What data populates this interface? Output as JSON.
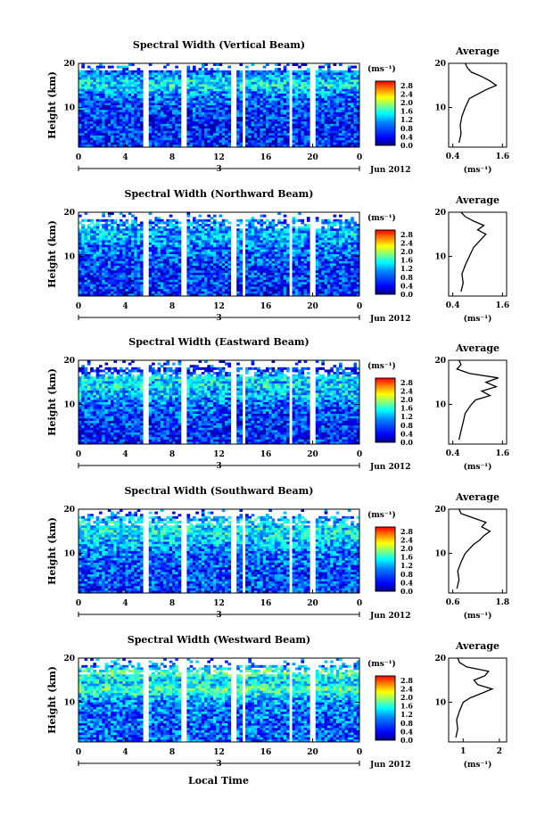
{
  "figure": {
    "x_axis_label": "Local Time",
    "date_label": "Jun 2012",
    "day_marker": "3",
    "colorbar_unit": "(ms⁻¹)",
    "y_axis_label": "Height (km)",
    "avg_title": "Average",
    "avg_unit": "(ms⁻¹)"
  },
  "chart_data": [
    {
      "type": "heatmap",
      "title": "Spectral Width (Vertical Beam)",
      "ylabel": "Height (km)",
      "xlabel": "Local Time",
      "x_ticks": [
        "0",
        "4",
        "8",
        "12",
        "16",
        "20",
        "0"
      ],
      "xlim": [
        0,
        24
      ],
      "y_ticks": [
        "20",
        "10"
      ],
      "ylim": [
        1,
        20
      ],
      "colorbar": {
        "unit": "(ms⁻¹)",
        "ticks": [
          "2.8",
          "2.4",
          "2.0",
          "1.6",
          "1.2",
          "0.8",
          "0.4",
          "0.0"
        ],
        "range": [
          0,
          3.0
        ]
      },
      "data_gaps_hours": [
        [
          5.6,
          6.1
        ],
        [
          8.8,
          9.3
        ],
        [
          13.0,
          13.6
        ],
        [
          14.0,
          14.3
        ],
        [
          17.9,
          18.2
        ],
        [
          19.7,
          20.2
        ]
      ],
      "average_profile": {
        "title": "Average",
        "xlabel": "(ms⁻¹)",
        "x_ticks": [
          "0.4",
          "1.6"
        ],
        "xlim": [
          0.3,
          1.7
        ],
        "ylim": [
          1,
          20
        ],
        "height_km": [
          2,
          4,
          6,
          8,
          10,
          12,
          13,
          14,
          15,
          16,
          17,
          18,
          19,
          20
        ],
        "width": [
          0.55,
          0.6,
          0.58,
          0.62,
          0.7,
          0.8,
          1.0,
          1.2,
          1.45,
          1.3,
          1.1,
          0.85,
          0.75,
          0.7
        ]
      }
    },
    {
      "type": "heatmap",
      "title": "Spectral Width (Northward Beam)",
      "ylabel": "Height (km)",
      "xlabel": "Local Time",
      "x_ticks": [
        "0",
        "4",
        "8",
        "12",
        "16",
        "20",
        "0"
      ],
      "xlim": [
        0,
        24
      ],
      "y_ticks": [
        "20",
        "10"
      ],
      "ylim": [
        1,
        20
      ],
      "colorbar": {
        "unit": "(ms⁻¹)",
        "ticks": [
          "2.8",
          "2.4",
          "2.0",
          "1.6",
          "1.2",
          "0.8",
          "0.4",
          "0.0"
        ],
        "range": [
          0,
          3.0
        ]
      },
      "data_gaps_hours": [
        [
          5.6,
          6.1
        ],
        [
          8.8,
          9.3
        ],
        [
          13.0,
          13.6
        ],
        [
          14.0,
          14.3
        ],
        [
          17.9,
          18.2
        ],
        [
          19.7,
          20.2
        ]
      ],
      "average_profile": {
        "title": "Average",
        "xlabel": "(ms⁻¹)",
        "x_ticks": [
          "0.4",
          "1.6"
        ],
        "xlim": [
          0.3,
          1.7
        ],
        "ylim": [
          1,
          20
        ],
        "height_km": [
          2,
          4,
          6,
          8,
          10,
          12,
          13,
          14,
          15,
          16,
          17,
          18,
          19,
          20
        ],
        "width": [
          0.6,
          0.65,
          0.62,
          0.7,
          0.8,
          0.9,
          1.0,
          1.1,
          1.2,
          1.0,
          1.15,
          0.9,
          0.7,
          0.6
        ]
      }
    },
    {
      "type": "heatmap",
      "title": "Spectral Width (Eastward Beam)",
      "ylabel": "Height (km)",
      "xlabel": "Local Time",
      "x_ticks": [
        "0",
        "4",
        "8",
        "12",
        "16",
        "20",
        "0"
      ],
      "xlim": [
        0,
        24
      ],
      "y_ticks": [
        "20",
        "10"
      ],
      "ylim": [
        1,
        20
      ],
      "colorbar": {
        "unit": "(ms⁻¹)",
        "ticks": [
          "2.8",
          "2.4",
          "2.0",
          "1.6",
          "1.2",
          "0.8",
          "0.4",
          "0.0"
        ],
        "range": [
          0,
          3.0
        ]
      },
      "data_gaps_hours": [
        [
          5.6,
          6.1
        ],
        [
          8.8,
          9.3
        ],
        [
          13.0,
          13.6
        ],
        [
          14.0,
          14.3
        ],
        [
          17.9,
          18.2
        ],
        [
          19.7,
          20.2
        ]
      ],
      "average_profile": {
        "title": "Average",
        "xlabel": "(ms⁻¹)",
        "x_ticks": [
          "0.4",
          "1.6"
        ],
        "xlim": [
          0.3,
          1.7
        ],
        "ylim": [
          1,
          20
        ],
        "height_km": [
          2,
          4,
          6,
          8,
          10,
          11,
          12,
          13,
          14,
          15,
          16,
          17,
          18,
          19,
          20
        ],
        "width": [
          0.55,
          0.6,
          0.65,
          0.7,
          0.85,
          0.95,
          1.3,
          1.1,
          1.45,
          1.2,
          1.5,
          0.8,
          0.5,
          0.6,
          0.55
        ]
      }
    },
    {
      "type": "heatmap",
      "title": "Spectral Width (Southward Beam)",
      "ylabel": "Height (km)",
      "xlabel": "Local Time",
      "x_ticks": [
        "0",
        "4",
        "8",
        "12",
        "16",
        "20",
        "0"
      ],
      "xlim": [
        0,
        24
      ],
      "y_ticks": [
        "20",
        "10"
      ],
      "ylim": [
        1,
        20
      ],
      "colorbar": {
        "unit": "(ms⁻¹)",
        "ticks": [
          "2.8",
          "2.4",
          "2.0",
          "1.6",
          "1.2",
          "0.8",
          "0.4",
          "0.0"
        ],
        "range": [
          0,
          3.0
        ]
      },
      "data_gaps_hours": [
        [
          5.6,
          6.1
        ],
        [
          8.8,
          9.3
        ],
        [
          13.0,
          13.6
        ],
        [
          14.0,
          14.3
        ],
        [
          17.9,
          18.2
        ],
        [
          19.7,
          20.2
        ]
      ],
      "average_profile": {
        "title": "Average",
        "xlabel": "(ms⁻¹)",
        "x_ticks": [
          "0.6",
          "1.8"
        ],
        "xlim": [
          0.5,
          1.9
        ],
        "ylim": [
          1,
          20
        ],
        "height_km": [
          2,
          4,
          6,
          8,
          10,
          12,
          13,
          14,
          15,
          16,
          17,
          18,
          19,
          20
        ],
        "width": [
          0.7,
          0.75,
          0.72,
          0.8,
          0.9,
          1.1,
          1.25,
          1.35,
          1.5,
          1.3,
          1.4,
          1.1,
          0.8,
          0.75
        ]
      }
    },
    {
      "type": "heatmap",
      "title": "Spectral Width (Westward Beam)",
      "ylabel": "Height (km)",
      "xlabel": "Local Time",
      "x_ticks": [
        "0",
        "4",
        "8",
        "12",
        "16",
        "20",
        "0"
      ],
      "xlim": [
        0,
        24
      ],
      "y_ticks": [
        "20",
        "10"
      ],
      "ylim": [
        1,
        20
      ],
      "colorbar": {
        "unit": "(ms⁻¹)",
        "ticks": [
          "2.8",
          "2.4",
          "2.0",
          "1.6",
          "1.2",
          "0.8",
          "0.4",
          "0.0"
        ],
        "range": [
          0,
          3.0
        ]
      },
      "data_gaps_hours": [
        [
          5.6,
          6.1
        ],
        [
          8.8,
          9.3
        ],
        [
          13.0,
          13.6
        ],
        [
          14.0,
          14.3
        ],
        [
          17.9,
          18.2
        ],
        [
          19.7,
          20.2
        ]
      ],
      "average_profile": {
        "title": "Average",
        "xlabel": "(ms⁻¹)",
        "x_ticks": [
          "1",
          "2"
        ],
        "xlim": [
          0.6,
          2.2
        ],
        "ylim": [
          1,
          20
        ],
        "height_km": [
          2,
          4,
          6,
          8,
          10,
          11,
          12,
          13,
          14,
          15,
          16,
          17,
          18,
          19,
          20
        ],
        "width": [
          0.8,
          0.85,
          0.82,
          0.9,
          1.0,
          1.2,
          1.5,
          1.8,
          1.4,
          1.3,
          1.6,
          1.7,
          1.1,
          0.9,
          0.85
        ]
      }
    }
  ]
}
